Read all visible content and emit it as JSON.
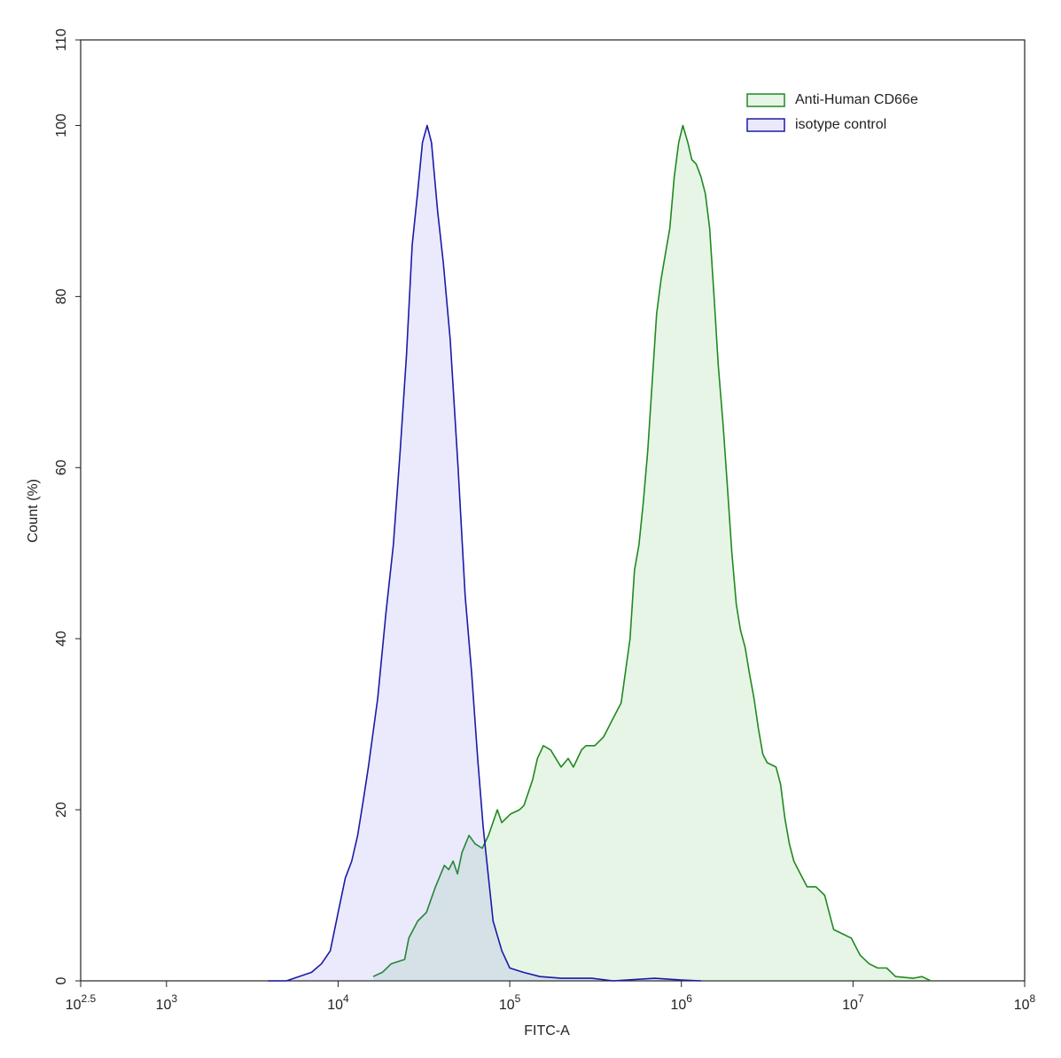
{
  "chart_data": {
    "type": "area",
    "x_label": "FITC-A",
    "y_label": "Count  (%)",
    "x_scale": "log",
    "xlim": [
      316.23,
      100000000
    ],
    "xticks": [
      {
        "value": 316.23,
        "label": "10^2.5"
      },
      {
        "value": 1000,
        "label": "10^3"
      },
      {
        "value": 10000,
        "label": "10^4"
      },
      {
        "value": 100000,
        "label": "10^5"
      },
      {
        "value": 1000000,
        "label": "10^6"
      },
      {
        "value": 10000000,
        "label": "10^7"
      },
      {
        "value": 100000000,
        "label": "10^8"
      }
    ],
    "ylim": [
      0,
      110
    ],
    "yticks": [
      0,
      20,
      40,
      60,
      80,
      100,
      110
    ],
    "legend": "top-right",
    "series": [
      {
        "name": "Anti-Human CD66e",
        "color": "#1f8a1f",
        "fill": "rgba(60,170,60,0.12)",
        "x": [
          16000,
          18100,
          20400,
          24400,
          25800,
          29100,
          32700,
          36900,
          41600,
          44100,
          46800,
          49600,
          52700,
          57900,
          63000,
          69200,
          75200,
          84700,
          89900,
          101000,
          114000,
          121000,
          136000,
          145000,
          157000,
          173000,
          199000,
          219000,
          235000,
          262000,
          278000,
          313000,
          352000,
          396000,
          446000,
          502000,
          533000,
          566000,
          600000,
          637000,
          676000,
          717000,
          761000,
          807000,
          857000,
          909000,
          965000,
          1020000,
          1090000,
          1150000,
          1220000,
          1300000,
          1380000,
          1460000,
          1550000,
          1640000,
          1750000,
          1850000,
          1970000,
          2090000,
          2210000,
          2350000,
          2490000,
          2650000,
          2810000,
          2980000,
          3160000,
          3560000,
          3780000,
          4010000,
          4260000,
          4520000,
          4790000,
          5400000,
          6080000,
          6840000,
          7260000,
          7710000,
          8680000,
          9770000,
          11000000,
          12400000,
          13900000,
          15700000,
          17700000,
          22400000,
          25200000,
          28400000
        ],
        "values": [
          0.5,
          1,
          2,
          2.5,
          5,
          7,
          8,
          11,
          13.5,
          13,
          14,
          12.5,
          15,
          17,
          16,
          15.5,
          17,
          20,
          18.5,
          19.5,
          20,
          20.5,
          23.5,
          26,
          27.5,
          27,
          25,
          26,
          25,
          27,
          27.5,
          27.5,
          28.5,
          30.5,
          32.5,
          40,
          48,
          51,
          56,
          62,
          70,
          78,
          82,
          85,
          88,
          94,
          98,
          100,
          98,
          96,
          95.5,
          94,
          92,
          88,
          80,
          72,
          65,
          58,
          50,
          44,
          41,
          39,
          36,
          33,
          29.5,
          26.5,
          25.5,
          25,
          23,
          19,
          16,
          14,
          13,
          11,
          11,
          10,
          8,
          6,
          5.5,
          5,
          3,
          2,
          1.5,
          1.5,
          0.5,
          0.3,
          0.5,
          0
        ]
      },
      {
        "name": "isotype control",
        "color": "#1a1aa8",
        "fill": "rgba(90,90,235,0.13)",
        "x": [
          3900,
          5000,
          7000,
          8000,
          9000,
          10000,
          11000,
          12000,
          13000,
          14000,
          15000,
          17000,
          19000,
          21000,
          23000,
          25000,
          27000,
          29000,
          31000,
          33000,
          35000,
          38000,
          41000,
          45000,
          50000,
          55000,
          60000,
          65000,
          70000,
          80000,
          90000,
          100000,
          120000,
          150000,
          200000,
          250000,
          300000,
          400000,
          700000,
          1000000,
          1300000
        ],
        "values": [
          0,
          0,
          1,
          2,
          3.5,
          8,
          12,
          14,
          17,
          21,
          25,
          33,
          43,
          51,
          62,
          73,
          86,
          92,
          98,
          100,
          98,
          90,
          84,
          75,
          60,
          45,
          36,
          26,
          18,
          7,
          3.5,
          1.5,
          1,
          0.5,
          0.3,
          0.3,
          0.3,
          0,
          0.3,
          0.1,
          0
        ]
      }
    ]
  }
}
